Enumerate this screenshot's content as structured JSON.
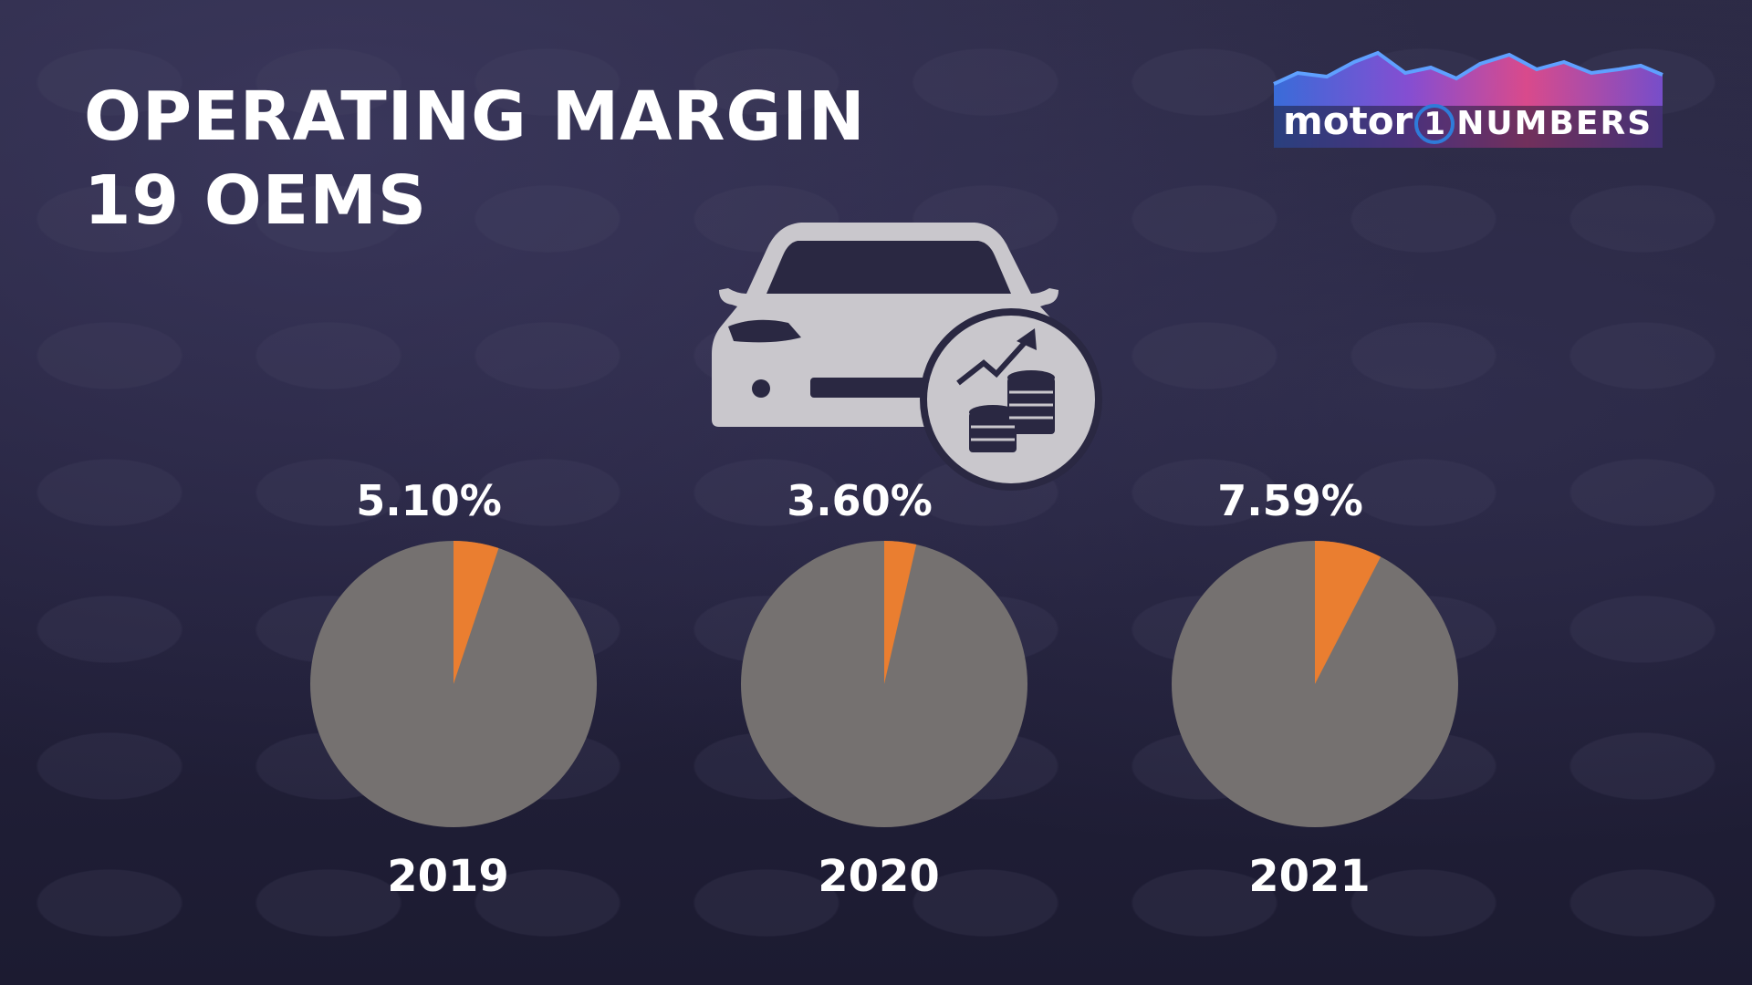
{
  "title": {
    "line1": "OPERATING MARGIN",
    "line2": "19 OEMS"
  },
  "logo": {
    "brand": "motor",
    "mark": "1",
    "suffix": "NUMBERS"
  },
  "icons": {
    "hero": "car-money-growth-icon"
  },
  "colors": {
    "background": "#23213b",
    "slice": "#ea7e30",
    "remainder": "#757170",
    "text": "#ffffff",
    "icon": "#c9c7cc"
  },
  "chart_data": {
    "type": "pie",
    "title": "OPERATING MARGIN 19 OEMS",
    "series": [
      {
        "name": "2019",
        "value": 5.1,
        "label": "5.10%"
      },
      {
        "name": "2020",
        "value": 3.6,
        "label": "3.60%"
      },
      {
        "name": "2021",
        "value": 7.59,
        "label": "7.59%"
      }
    ],
    "categories": [
      "2019",
      "2020",
      "2021"
    ]
  }
}
